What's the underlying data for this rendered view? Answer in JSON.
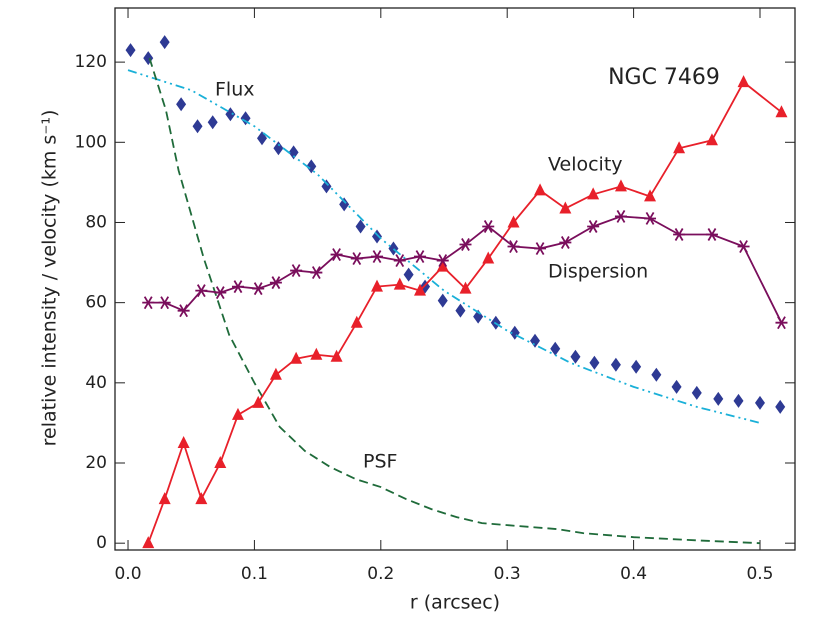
{
  "chart_data": {
    "type": "line",
    "title": "NGC 7469",
    "xlabel": "r (arcsec)",
    "ylabel": "relative intensity / velocity (km s⁻¹)",
    "xlim": [
      -0.0103,
      0.5277
    ],
    "ylim": [
      -1.7,
      133.5
    ],
    "xticks": [
      {
        "value": 0,
        "label": "0.0"
      },
      0.1,
      0.2,
      0.3,
      0.4,
      0.5
    ],
    "yticks": [
      0,
      20,
      40,
      60,
      80,
      100,
      120
    ],
    "series": [
      {
        "name": "Flux",
        "color": "#2e3a94",
        "marker": "diamond",
        "line": "none",
        "x": [
          0.002,
          0.016,
          0.029,
          0.042,
          0.055,
          0.067,
          0.081,
          0.093,
          0.106,
          0.119,
          0.131,
          0.145,
          0.157,
          0.171,
          0.184,
          0.197,
          0.21,
          0.222,
          0.235,
          0.249,
          0.263,
          0.277,
          0.291,
          0.306,
          0.322,
          0.338,
          0.354,
          0.369,
          0.386,
          0.402,
          0.418,
          0.434,
          0.45,
          0.467,
          0.483,
          0.5,
          0.516
        ],
        "values": [
          123,
          121,
          125,
          109.5,
          104,
          105,
          107,
          106,
          101,
          98.5,
          97.5,
          94,
          89,
          84.5,
          79,
          76.5,
          73.5,
          67,
          64,
          60.5,
          58,
          56.5,
          55,
          52.5,
          50.5,
          48.5,
          46.5,
          45,
          44.5,
          44,
          42,
          39,
          37.5,
          36,
          35.5,
          35,
          34
        ]
      },
      {
        "color": "#1ab0d8",
        "marker": "none",
        "line": "dashdotdot",
        "x": [
          0,
          0.05,
          0.1,
          0.15,
          0.2,
          0.25,
          0.3,
          0.35,
          0.4,
          0.45,
          0.5
        ],
        "values": [
          118,
          113,
          104,
          92,
          76,
          63,
          53,
          45,
          39,
          34,
          30
        ]
      },
      {
        "name": "PSF",
        "color": "#1f6b3a",
        "marker": "none",
        "line": "dashed",
        "x": [
          0.017,
          0.03,
          0.04,
          0.06,
          0.08,
          0.1,
          0.12,
          0.14,
          0.16,
          0.18,
          0.2,
          0.22,
          0.24,
          0.26,
          0.28,
          0.3,
          0.32,
          0.34,
          0.36,
          0.38,
          0.4,
          0.45,
          0.5
        ],
        "values": [
          121,
          108,
          93,
          71,
          52,
          40,
          29,
          23,
          19,
          16,
          14,
          11,
          8.5,
          6.5,
          5,
          4.5,
          4,
          3.5,
          2.5,
          2,
          1.5,
          0.7,
          0
        ]
      },
      {
        "name": "Velocity",
        "color": "#e8202a",
        "marker": "triangle",
        "line": "solid",
        "x": [
          0.016,
          0.029,
          0.044,
          0.058,
          0.073,
          0.087,
          0.103,
          0.117,
          0.133,
          0.149,
          0.165,
          0.181,
          0.197,
          0.215,
          0.231,
          0.249,
          0.267,
          0.285,
          0.305,
          0.326,
          0.346,
          0.368,
          0.39,
          0.413,
          0.436,
          0.462,
          0.487,
          0.517
        ],
        "values": [
          0,
          11,
          25,
          11,
          20,
          32,
          35,
          42,
          46,
          47,
          46.5,
          55,
          64,
          64.5,
          63,
          69,
          63.5,
          71,
          80,
          88,
          83.5,
          87,
          89,
          86.5,
          98.5,
          100.5,
          115,
          107.5
        ]
      },
      {
        "name": "Dispersion",
        "color": "#7a0e5c",
        "marker": "asterisk",
        "line": "solid",
        "x": [
          0.016,
          0.029,
          0.044,
          0.058,
          0.073,
          0.087,
          0.103,
          0.117,
          0.133,
          0.149,
          0.165,
          0.181,
          0.197,
          0.215,
          0.231,
          0.249,
          0.267,
          0.285,
          0.305,
          0.326,
          0.346,
          0.368,
          0.39,
          0.413,
          0.436,
          0.462,
          0.487,
          0.517
        ],
        "values": [
          60,
          60,
          58,
          63,
          62.5,
          64,
          63.5,
          65,
          68,
          67.5,
          72,
          71,
          71.5,
          70.5,
          71.5,
          70.5,
          74.5,
          79,
          74,
          73.5,
          75,
          79,
          81.5,
          81,
          77,
          77,
          74,
          55
        ]
      }
    ]
  }
}
